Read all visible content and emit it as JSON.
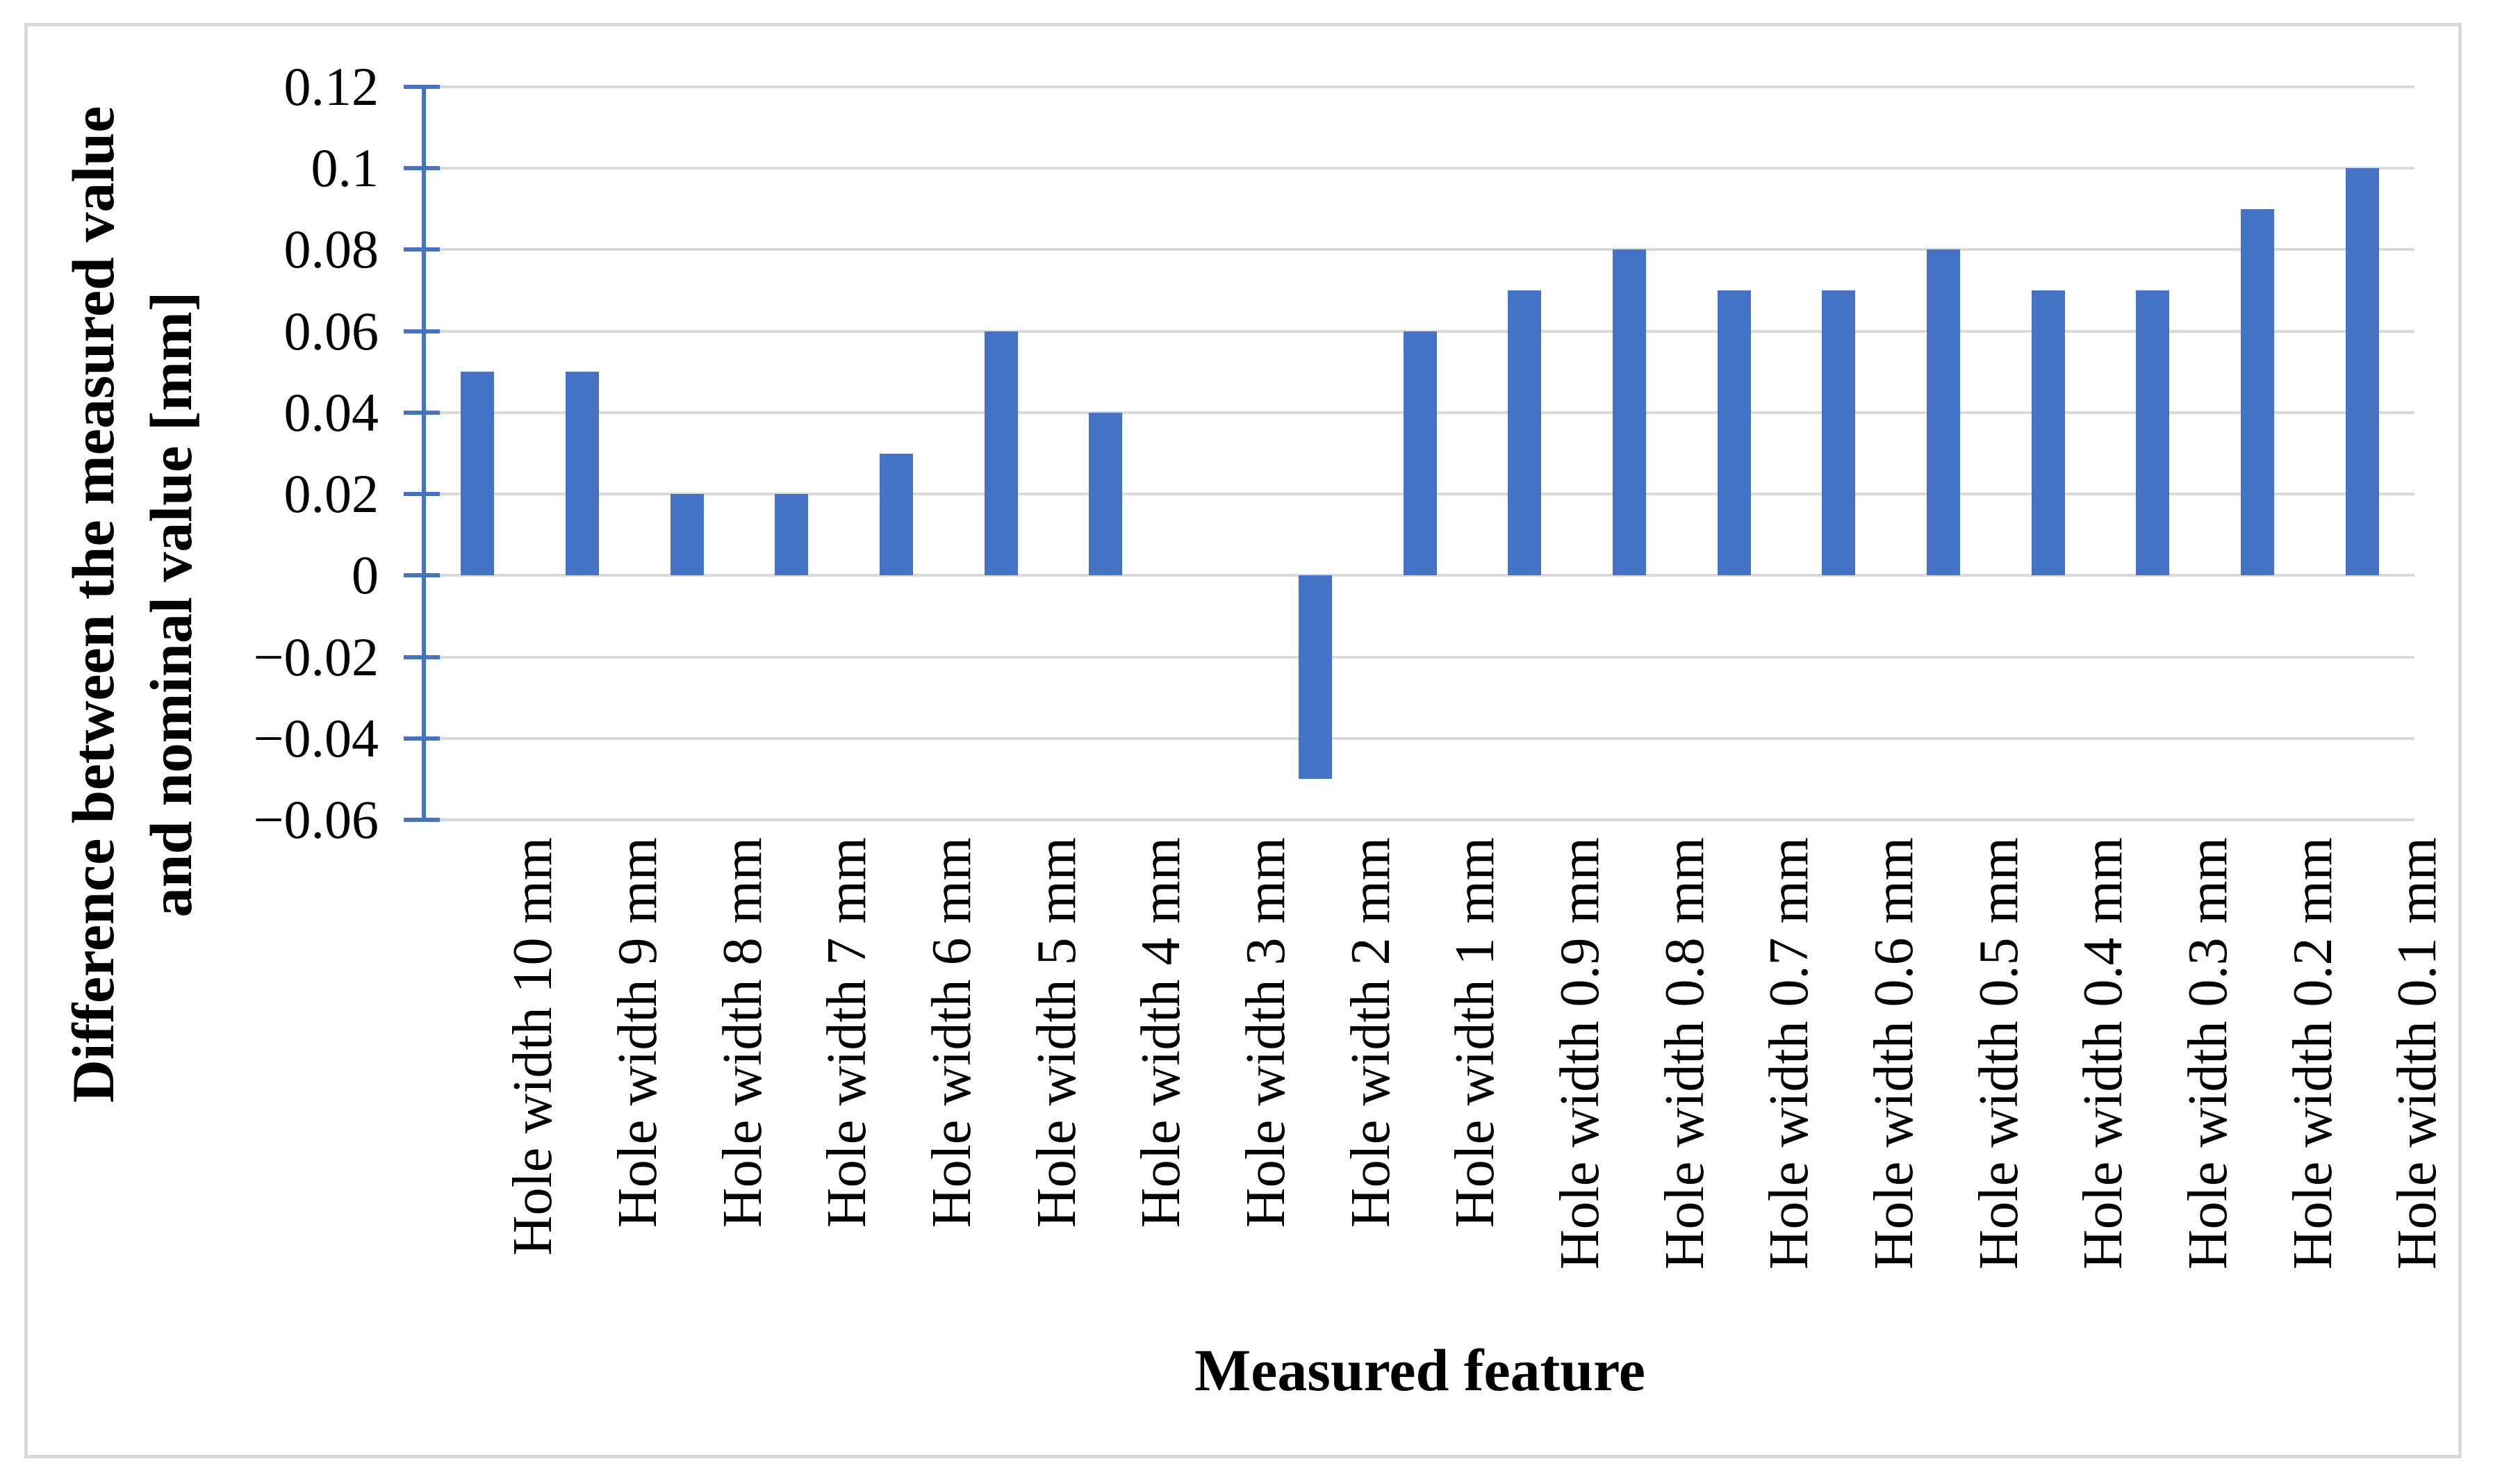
{
  "figure": {
    "background": "#ffffff",
    "border_color": "#d9d9d9"
  },
  "chart_data": {
    "type": "bar",
    "title": "",
    "xlabel": "Measured feature",
    "ylabel_line1": "Difference between the measured value",
    "ylabel_line2": "and nominal value [mm]",
    "categories": [
      "Hole width 10 mm",
      "Hole width 9 mm",
      "Hole width 8 mm",
      "Hole width 7 mm",
      "Hole width 6 mm",
      "Hole width 5 mm",
      "Hole width 4 mm",
      "Hole width 3 mm",
      "Hole width 2 mm",
      "Hole width 1 mm",
      "Hole width 0.9 mm",
      "Hole width 0.8 mm",
      "Hole width 0.7 mm",
      "Hole width 0.6 mm",
      "Hole width 0.5 mm",
      "Hole width 0.4 mm",
      "Hole width 0.3 mm",
      "Hole width 0.2 mm",
      "Hole width 0.1 mm"
    ],
    "values": [
      0.05,
      0.05,
      0.02,
      0.02,
      0.03,
      0.06,
      0.04,
      0,
      -0.05,
      0.06,
      0.07,
      0.08,
      0.07,
      0.07,
      0.08,
      0.07,
      0.07,
      0.09,
      0.1
    ],
    "ylim": [
      -0.06,
      0.12
    ],
    "ytick_step": 0.02,
    "ytick_labels": [
      "0.12",
      "0.1",
      "0.08",
      "0.06",
      "0.04",
      "0.02",
      "0",
      "−0.02",
      "−0.04",
      "−0.06"
    ],
    "grid": true,
    "legend": null,
    "bar_color": "#4472c4",
    "axis_color": "#4472c4",
    "gridline_color": "#d9d9d9",
    "text_color": "#000000"
  }
}
